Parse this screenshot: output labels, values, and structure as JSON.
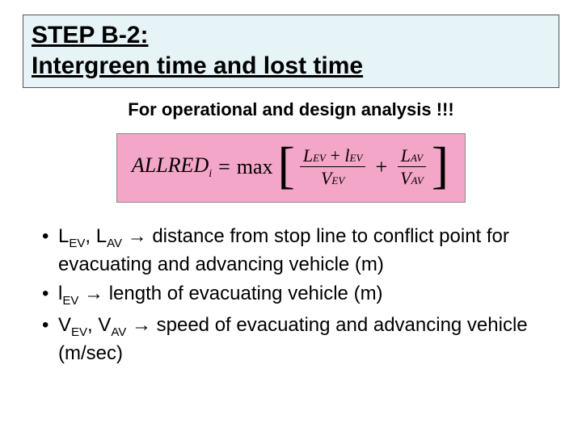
{
  "title": {
    "line1": "STEP B-2:",
    "line2": "Intergreen time and lost time"
  },
  "subtitle": "For operational and design analysis !!!",
  "formula": {
    "lhs_main": "ALLRED",
    "lhs_sub": "i",
    "eq": "=",
    "max": "max",
    "num1_a": "L",
    "num1_a_sub": "EV",
    "num1_plus": "+",
    "num1_b": "l",
    "num1_b_sub": "EV",
    "den1": "V",
    "den1_sub": "EV",
    "plus": "+",
    "num2": "L",
    "num2_sub": "AV",
    "den2": "V",
    "den2_sub": "AV"
  },
  "bullets": {
    "b1_v1": "L",
    "b1_v1s": "EV",
    "b1_sep": ", ",
    "b1_v2": "L",
    "b1_v2s": "AV",
    "b1_arrow": " → ",
    "b1_text": "distance from stop line to conflict point for evacuating and advancing vehicle (m)",
    "b2_v1": "l",
    "b2_v1s": "EV",
    "b2_arrow": " → ",
    "b2_text": "length of evacuating vehicle (m)",
    "b3_v1": "V",
    "b3_v1s": "EV",
    "b3_sep": ", ",
    "b3_v2": "V",
    "b3_v2s": "AV",
    "b3_arrow": " → ",
    "b3_text": "speed of evacuating and advancing vehicle (m/sec)"
  },
  "colors": {
    "title_bg": "#e6f3f7",
    "formula_bg": "#f4a6c8",
    "text": "#000000",
    "page_bg": "#ffffff"
  }
}
